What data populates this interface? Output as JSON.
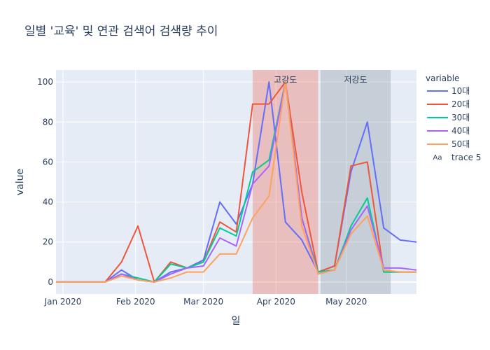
{
  "chart_data": {
    "type": "line",
    "title": "일별 '교육' 및 연관 검색어 검색량 추이",
    "xlabel": "일",
    "ylabel": "value",
    "legend_title": "variable",
    "x": [
      "2019-12-29",
      "2020-01-05",
      "2020-01-12",
      "2020-01-19",
      "2020-01-26",
      "2020-02-02",
      "2020-02-09",
      "2020-02-16",
      "2020-02-23",
      "2020-03-01",
      "2020-03-08",
      "2020-03-15",
      "2020-03-22",
      "2020-03-29",
      "2020-04-05",
      "2020-04-12",
      "2020-04-19",
      "2020-04-26",
      "2020-05-03",
      "2020-05-10",
      "2020-05-17",
      "2020-05-24",
      "2020-05-31"
    ],
    "x_ticks": [
      {
        "date": "2020-01-01",
        "label": "Jan 2020"
      },
      {
        "date": "2020-02-01",
        "label": "Feb 2020"
      },
      {
        "date": "2020-03-01",
        "label": "Mar 2020"
      },
      {
        "date": "2020-04-01",
        "label": "Apr 2020"
      },
      {
        "date": "2020-05-01",
        "label": "May 2020"
      }
    ],
    "ylim": [
      -6,
      106
    ],
    "y_ticks": [
      0,
      20,
      40,
      60,
      80,
      100
    ],
    "grid": true,
    "legend_position": "right",
    "series": [
      {
        "name": "10대",
        "color": "#636efa",
        "values": [
          0,
          0,
          0,
          0,
          6,
          1,
          0,
          5,
          7,
          11,
          40,
          29,
          49,
          100,
          30,
          21,
          5,
          8,
          55,
          80,
          27,
          21,
          20
        ]
      },
      {
        "name": "20대",
        "color": "#ef553b",
        "values": [
          0,
          0,
          0,
          0,
          10,
          28,
          0,
          10,
          7,
          10,
          30,
          25,
          89,
          89,
          100,
          45,
          5,
          8,
          58,
          60,
          5,
          5,
          5
        ]
      },
      {
        "name": "30대",
        "color": "#00cc96",
        "values": [
          0,
          0,
          0,
          0,
          4,
          2,
          0,
          9,
          7,
          10,
          27,
          23,
          55,
          61,
          100,
          32,
          5,
          6,
          28,
          42,
          5,
          5,
          5
        ]
      },
      {
        "name": "40대",
        "color": "#ab63fa",
        "values": [
          0,
          0,
          0,
          0,
          4,
          1,
          0,
          4,
          7,
          8,
          22,
          18,
          49,
          58,
          100,
          32,
          4,
          6,
          26,
          38,
          7,
          7,
          6
        ]
      },
      {
        "name": "50대",
        "color": "#ffa15a",
        "values": [
          0,
          0,
          0,
          0,
          3,
          1,
          0,
          2,
          5,
          5,
          14,
          14,
          32,
          43,
          100,
          28,
          4,
          6,
          24,
          33,
          6,
          5,
          5
        ]
      }
    ],
    "legend_extra": {
      "symbol": "Aa",
      "label": "trace 5"
    },
    "bands": [
      {
        "label": "고강도",
        "start": "2020-03-22",
        "end": "2020-04-19",
        "color": "#ef553b",
        "opacity": 0.3
      },
      {
        "label": "저강도",
        "start": "2020-04-20",
        "end": "2020-05-20",
        "color": "#7f8c8d",
        "opacity": 0.3
      }
    ],
    "x_range": [
      "2019-12-29",
      "2020-05-31"
    ]
  }
}
